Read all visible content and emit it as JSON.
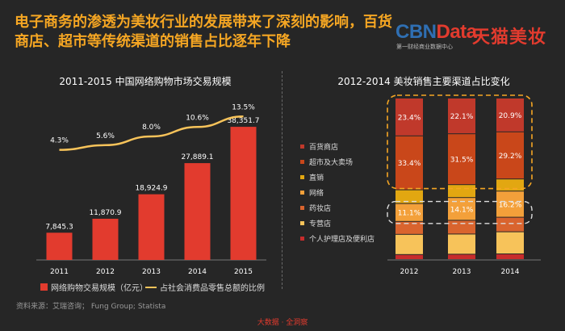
{
  "headline": "电子商务的渗透为美妆行业的发展带来了深刻的影响，百货商店、超市等传统渠道的销售占比逐年下降",
  "logo": {
    "cbn": "CBN",
    "data": "Data",
    "sub": "第一财经商业数据中心",
    "tmall": "天猫美妆"
  },
  "colors": {
    "accent": "#f5a623",
    "bar": "#e23b2e",
    "line": "#f7c35a",
    "background": "#262626"
  },
  "chart_data": [
    {
      "type": "bar",
      "title": "2011-2015 中国网络购物市场交易规模",
      "categories": [
        "2011",
        "2012",
        "2013",
        "2014",
        "2015"
      ],
      "series": [
        {
          "name": "网络购物交易规模（亿元）",
          "kind": "bar",
          "values": [
            7845.3,
            11870.9,
            18924.9,
            27889.1,
            38351.7
          ],
          "labels": [
            "7,845.3",
            "11,870.9",
            "18,924.9",
            "27,889.1",
            "38,351.7"
          ]
        },
        {
          "name": "占社会消费品零售总额的比例",
          "kind": "line",
          "values": [
            4.3,
            5.6,
            8.0,
            10.6,
            13.5
          ],
          "labels": [
            "4.3%",
            "5.6%",
            "8.0%",
            "10.6%",
            "13.5%"
          ]
        }
      ],
      "ylim": [
        0,
        40000
      ],
      "line_ylim": [
        2,
        14
      ]
    },
    {
      "type": "bar",
      "stacked": true,
      "title": "2012-2014 美妆销售主要渠道占比变化",
      "categories": [
        "2012",
        "2013",
        "2014"
      ],
      "series": [
        {
          "name": "百货商店",
          "color": "#c0392b",
          "values": [
            23.4,
            22.1,
            20.9
          ]
        },
        {
          "name": "超市及大卖场",
          "color": "#c9471a",
          "values": [
            33.4,
            31.5,
            29.2
          ]
        },
        {
          "name": "直销",
          "color": "#e2a711",
          "values": [
            8.5,
            8.0,
            7.5
          ]
        },
        {
          "name": "网络",
          "color": "#f3a03a",
          "values": [
            11.1,
            14.1,
            16.2
          ]
        },
        {
          "name": "药妆店",
          "color": "#d9642e",
          "values": [
            8.0,
            8.5,
            9.0
          ]
        },
        {
          "name": "专营店",
          "color": "#f7c35a",
          "values": [
            12.5,
            12.5,
            13.7
          ]
        },
        {
          "name": "个人护理店及便利店",
          "color": "#c72c2c",
          "values": [
            3.1,
            3.3,
            3.5
          ]
        }
      ],
      "labeled_series": [
        "百货商店",
        "超市及大卖场",
        "网络"
      ],
      "value_labels": {
        "百货商店": [
          "23.4%",
          "22.1%",
          "20.9%"
        ],
        "超市及大卖场": [
          "33.4%",
          "31.5%",
          "29.2%"
        ],
        "网络": [
          "11.1%",
          "14.1%",
          "16.2%"
        ]
      },
      "ylim": [
        0,
        100
      ]
    }
  ],
  "source": "资料来源：艾瑞咨询； Fung Group; Statista",
  "footer": "大数据 · 全洞察"
}
